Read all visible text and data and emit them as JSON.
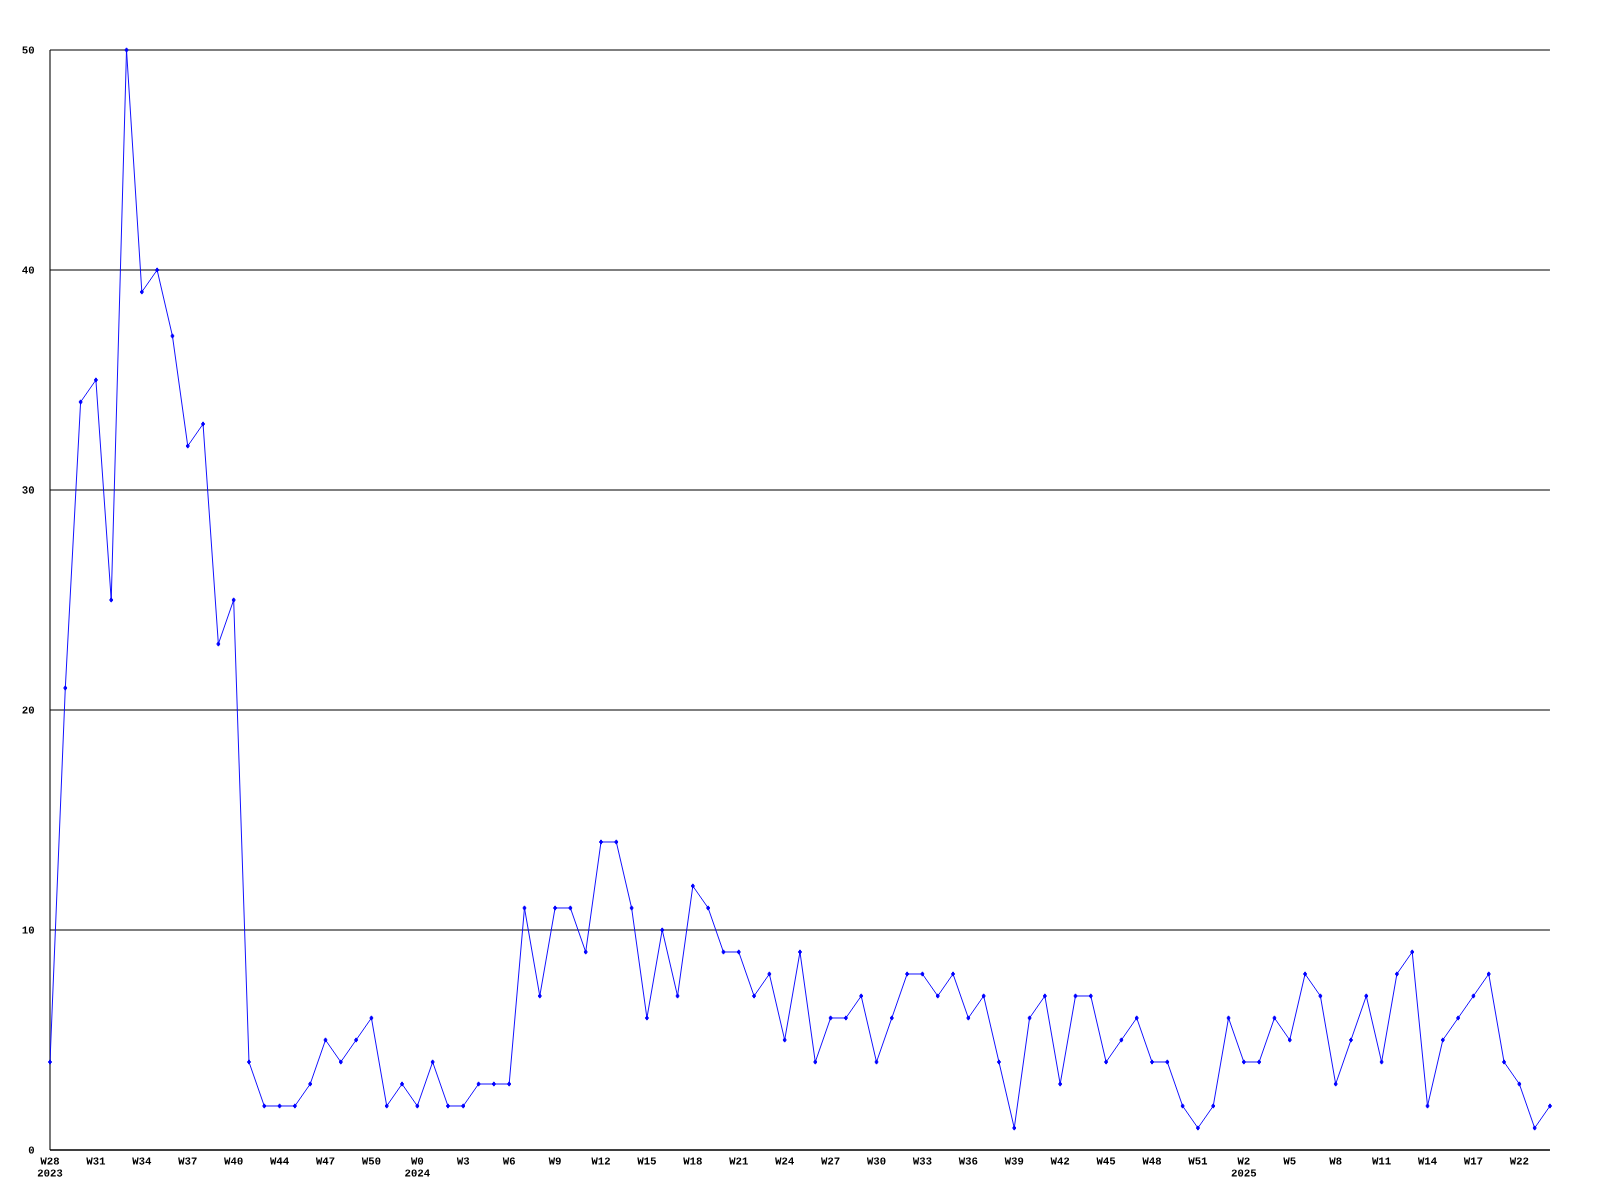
{
  "chart_data": {
    "type": "line",
    "categories": [
      "W28 2023",
      null,
      null,
      "W31",
      null,
      null,
      "W34",
      null,
      null,
      "W37",
      null,
      null,
      "W40",
      null,
      null,
      "W44",
      null,
      null,
      "W47",
      null,
      null,
      "W50",
      null,
      null,
      "W0 2024",
      null,
      null,
      "W3",
      null,
      null,
      "W6",
      null,
      null,
      "W9",
      null,
      null,
      "W12",
      null,
      null,
      "W15",
      null,
      null,
      "W18",
      null,
      null,
      "W21",
      null,
      null,
      "W24",
      null,
      null,
      "W27",
      null,
      null,
      "W30",
      null,
      null,
      "W33",
      null,
      null,
      "W36",
      null,
      null,
      "W39",
      null,
      null,
      "W42",
      null,
      null,
      "W45",
      null,
      null,
      "W48",
      null,
      null,
      "W51",
      null,
      null,
      "W2 2025",
      null,
      null,
      "W5",
      null,
      null,
      "W8",
      null,
      null,
      "W11",
      null,
      null,
      "W14",
      null,
      null,
      "W17",
      null,
      null,
      "W22",
      null,
      null
    ],
    "values": [
      4,
      21,
      34,
      35,
      25,
      50,
      39,
      40,
      37,
      32,
      33,
      23,
      25,
      4,
      2,
      2,
      2,
      3,
      5,
      4,
      5,
      6,
      2,
      3,
      2,
      4,
      2,
      2,
      3,
      3,
      3,
      11,
      7,
      11,
      11,
      9,
      14,
      14,
      11,
      6,
      10,
      7,
      12,
      11,
      9,
      9,
      7,
      8,
      5,
      9,
      4,
      6,
      6,
      7,
      4,
      6,
      8,
      8,
      7,
      8,
      6,
      7,
      4,
      1,
      6,
      7,
      3,
      7,
      7,
      4,
      5,
      6,
      4,
      4,
      2,
      1,
      2,
      6,
      4,
      4,
      6,
      5,
      8,
      7,
      3,
      5,
      7,
      4,
      8,
      9,
      2,
      5,
      6,
      7,
      8,
      4,
      3,
      1,
      2
    ],
    "color": "#0000ff",
    "ylim": [
      0,
      50
    ],
    "yticks": [
      0,
      10,
      20,
      30,
      40,
      50
    ],
    "grid": "y",
    "marker": "diamond",
    "line_style": "solid"
  }
}
